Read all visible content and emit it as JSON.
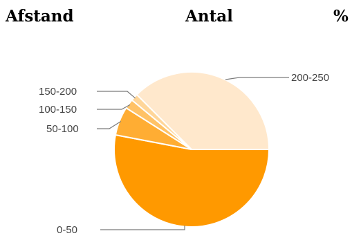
{
  "header": {
    "columns": [
      "Afstand",
      "Antal",
      "%"
    ]
  },
  "chart_data": {
    "type": "pie",
    "title": "",
    "start_angle_deg": 0,
    "direction": "clockwise",
    "slices": [
      {
        "label": "0-50",
        "value": 53,
        "color": "#ff9900"
      },
      {
        "label": "50-100",
        "value": 6,
        "color": "#ffad33"
      },
      {
        "label": "100-150",
        "value": 2,
        "color": "#ffc266"
      },
      {
        "label": "150-200",
        "value": 1.5,
        "color": "#ffd699"
      },
      {
        "label": "200-250",
        "value": 37.5,
        "color": "#ffe8cc"
      }
    ],
    "legend": "none",
    "labels": "outside-with-leader-lines"
  }
}
